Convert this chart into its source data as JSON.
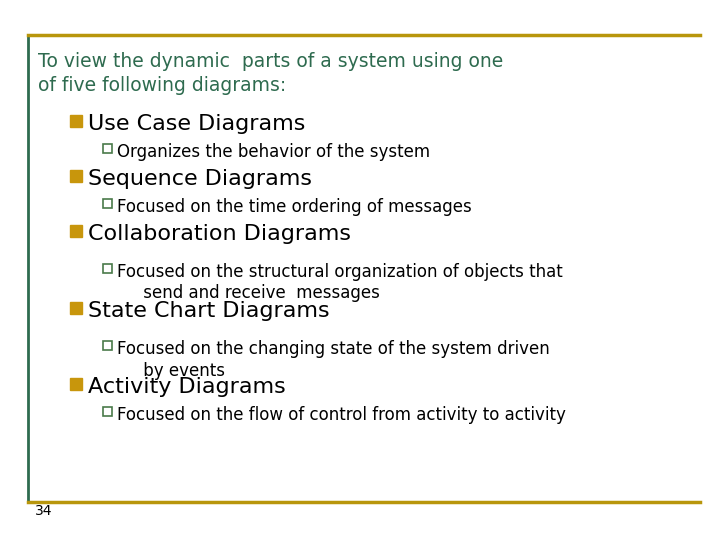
{
  "background_color": "#ffffff",
  "border_color_gold": "#B8960C",
  "border_color_green": "#2E6B4F",
  "title_text": "To view the dynamic  parts of a system using one\nof five following diagrams:",
  "title_color": "#2E6B4F",
  "title_fontsize": 13.5,
  "slide_number": "34",
  "slide_number_fontsize": 10,
  "bullet_color": "#C8960C",
  "sub_bullet_edge_color": "#4A7A4A",
  "body_text_color": "#000000",
  "l1_fontsize": 16,
  "l2_fontsize": 12,
  "items": [
    {
      "level": 1,
      "text": "Use Case Diagrams"
    },
    {
      "level": 2,
      "text": "Organizes the behavior of the system"
    },
    {
      "level": 1,
      "text": "Sequence Diagrams"
    },
    {
      "level": 2,
      "text": "Focused on the time ordering of messages"
    },
    {
      "level": 1,
      "text": "Collaboration Diagrams"
    },
    {
      "level": 2,
      "text": "Focused on the structural organization of objects that\n     send and receive  messages"
    },
    {
      "level": 1,
      "text": "State Chart Diagrams"
    },
    {
      "level": 2,
      "text": "Focused on the changing state of the system driven\n     by events"
    },
    {
      "level": 1,
      "text": "Activity Diagrams"
    },
    {
      "level": 2,
      "text": "Focused on the flow of control from activity to activity"
    }
  ]
}
